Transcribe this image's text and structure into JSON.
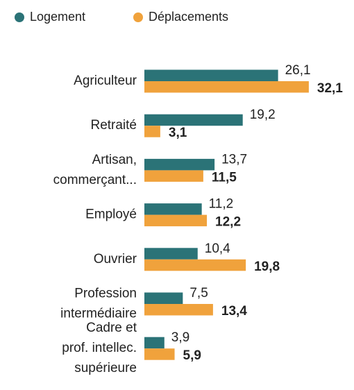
{
  "chart_data": {
    "type": "bar",
    "orientation": "horizontal",
    "categories": [
      [
        "Agriculteur"
      ],
      [
        "Retraité"
      ],
      [
        "Artisan,",
        "commerçant..."
      ],
      [
        "Employé"
      ],
      [
        "Ouvrier"
      ],
      [
        "Profession",
        "intermédiaire"
      ],
      [
        "Cadre et",
        "prof. intellec.",
        "supérieure"
      ]
    ],
    "series": [
      {
        "name": "Logement",
        "color": "#2b7377",
        "values": [
          26.1,
          19.2,
          13.7,
          11.2,
          10.4,
          7.5,
          3.9
        ],
        "value_labels": [
          "26,1",
          "19,2",
          "13,7",
          "11,2",
          "10,4",
          "7,5",
          "3,9"
        ]
      },
      {
        "name": "Déplacements",
        "color": "#f0a23c",
        "values": [
          32.1,
          3.1,
          11.5,
          12.2,
          19.8,
          13.4,
          5.9
        ],
        "value_labels": [
          "32,1",
          "3,1",
          "11,5",
          "12,2",
          "19,8",
          "13,4",
          "5,9"
        ]
      }
    ],
    "legend": "top-left"
  }
}
